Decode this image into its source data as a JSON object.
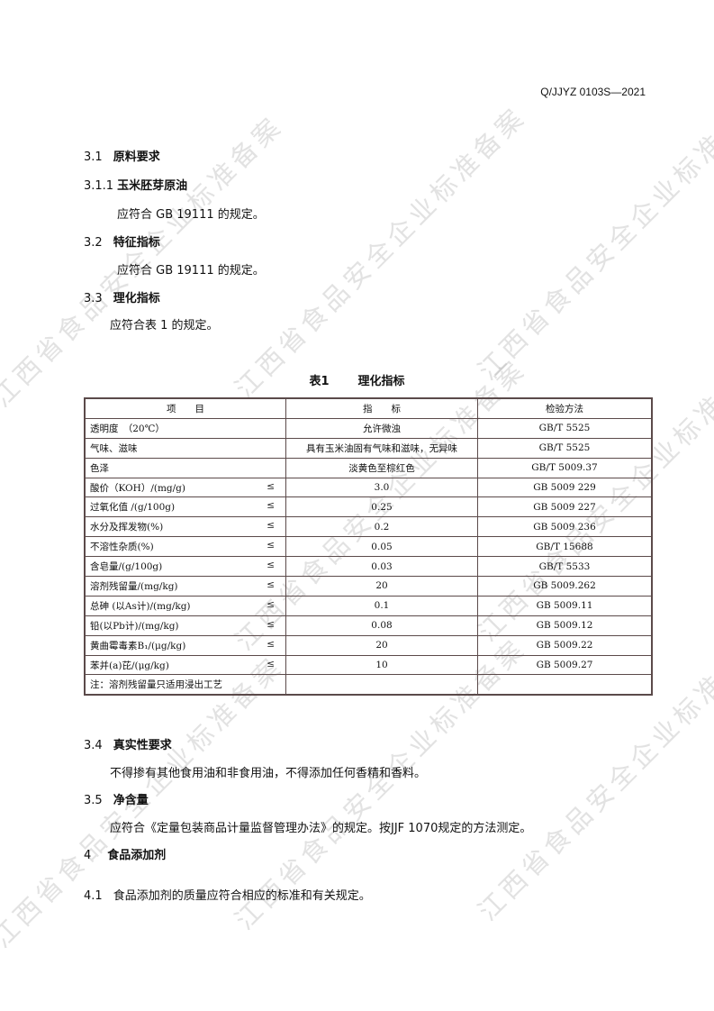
{
  "header": {
    "doc_code": "Q/JJYZ 0103S—2021"
  },
  "watermark": "江西省食品安全企业标准备案",
  "sections": [
    {
      "num": "3.1",
      "title": "原料要求"
    },
    {
      "num": "3.1.1",
      "title": "玉米胚芽原油",
      "body": "应符合 GB 19111 的规定。"
    },
    {
      "num": "3.2",
      "title": "特征指标",
      "body": "应符合 GB 19111 的规定。"
    },
    {
      "num": "3.3",
      "title": "理化指标",
      "body": "应符合表 1 的规定。"
    }
  ],
  "table": {
    "caption_num": "表1",
    "caption_title": "理化指标",
    "headers": [
      "项　　目",
      "指　　标",
      "检验方法"
    ],
    "rows": [
      {
        "item": "透明度　（20℃）",
        "le": "",
        "value": "允许微浊",
        "method": "GB/T 5525"
      },
      {
        "item": "气味、滋味",
        "le": "",
        "value": "具有玉米油固有气味和滋味，无异味",
        "method": "GB/T 5525"
      },
      {
        "item": "色泽",
        "le": "",
        "value": "淡黄色至棕红色",
        "method": "GB/T 5009.37"
      },
      {
        "item": "酸价（KOH）/(mg/g)",
        "le": "≤",
        "value": "3.0",
        "method": "GB 5009 229"
      },
      {
        "item": "过氧化值 /(g/100g)",
        "le": "≤",
        "value": "0.25",
        "method": "GB 5009 227"
      },
      {
        "item": "水分及挥发物(%)",
        "le": "≤",
        "value": "0.2",
        "method": "GB 5009 236"
      },
      {
        "item": "不溶性杂质(%)",
        "le": "≤",
        "value": "0.05",
        "method": "GB/T 15688"
      },
      {
        "item": "含皂量/(g/100g)",
        "le": "≤",
        "value": "0.03",
        "method": "GB/T 5533"
      },
      {
        "item": "溶剂残留量/(mg/kg)",
        "le": "≤",
        "value": "20",
        "method": "GB 5009.262"
      },
      {
        "item": "总砷 (以As计)/(mg/kg)",
        "le": "≤",
        "value": "0.1",
        "method": "GB 5009.11"
      },
      {
        "item": "铅(以Pb计)/(mg/kg)",
        "le": "≤",
        "value": "0.08",
        "method": "GB 5009.12"
      },
      {
        "item": "黄曲霉毒素B₁/(μg/kg)",
        "le": "≤",
        "value": "20",
        "method": "GB 5009.22"
      },
      {
        "item": "苯并(a)芘/(μg/kg)",
        "le": "≤",
        "value": "10",
        "method": "GB 5009.27"
      }
    ],
    "note": "注：溶剂残留量只适用浸出工艺"
  },
  "sections2": [
    {
      "num": "3.4",
      "title": "真实性要求",
      "body": "不得掺有其他食用油和非食用油，不得添加任何香精和香料。"
    },
    {
      "num": "3.5",
      "title": "净含量",
      "body": "应符合《定量包装商品计量监督管理办法》的规定。按JJF 1070规定的方法测定。"
    },
    {
      "num": "4",
      "title": "食品添加剂"
    },
    {
      "num": "4.1",
      "body": "食品添加剂的质量应符合相应的标准和有关规定。"
    }
  ]
}
